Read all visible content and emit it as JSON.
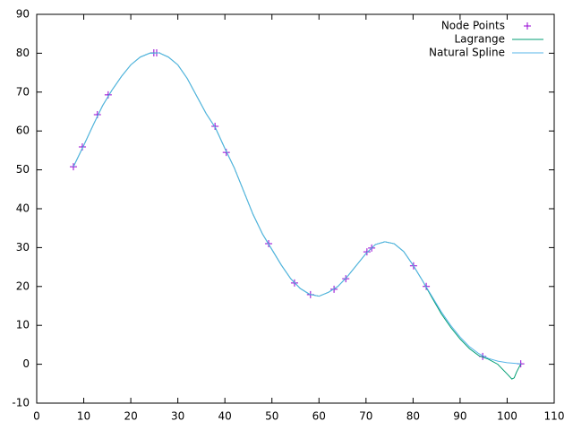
{
  "chart_data": {
    "type": "line",
    "xlim": [
      0,
      110
    ],
    "xticks": [
      0,
      10,
      20,
      30,
      40,
      50,
      60,
      70,
      80,
      90,
      100,
      110
    ],
    "ylim": [
      -10,
      90
    ],
    "yticks": [
      -10,
      0,
      10,
      20,
      30,
      40,
      50,
      60,
      70,
      80,
      90
    ],
    "grid": false,
    "legend": "top-right",
    "series": [
      {
        "name": "Node Points",
        "color": "#9400d3",
        "style": "points",
        "x": [
          7.8,
          9.7,
          12.9,
          15.2,
          24.9,
          25.5,
          37.9,
          40.3,
          49.3,
          54.8,
          58.2,
          63.2,
          65.7,
          70.2,
          71.2,
          80.1,
          82.8,
          94.8,
          102.9
        ],
        "values": [
          50.8,
          55.9,
          64.2,
          69.3,
          80.1,
          80.1,
          61.2,
          54.5,
          31.0,
          20.9,
          17.9,
          19.3,
          22.0,
          28.9,
          29.9,
          25.3,
          20.0,
          2.0,
          0.1
        ]
      },
      {
        "name": "Lagrange",
        "color": "#009e73",
        "style": "line",
        "x": [
          7.8,
          10,
          12,
          14,
          16,
          18,
          20,
          22,
          24,
          26,
          28,
          30,
          32,
          34,
          36,
          38,
          40,
          42,
          44,
          46,
          48,
          50,
          52,
          54,
          56,
          58,
          60,
          62,
          64,
          66,
          68,
          70,
          72,
          74,
          76,
          78,
          80,
          82,
          84,
          86,
          88,
          90,
          92,
          94,
          96,
          98,
          100,
          101,
          101.5,
          102,
          102.9
        ],
        "values": [
          50.8,
          56.3,
          61.5,
          66.5,
          70.5,
          74,
          77,
          79,
          80,
          80.1,
          79,
          77,
          73.5,
          69,
          64.5,
          60.8,
          55.5,
          50.5,
          44.5,
          38.5,
          33.5,
          29.5,
          25.5,
          22,
          19.5,
          18,
          17.5,
          18.5,
          20,
          22.5,
          25.5,
          28.5,
          30.8,
          31.5,
          31,
          29,
          25.5,
          21.5,
          17.2,
          13,
          9.5,
          6.5,
          4,
          2.2,
          1.3,
          0,
          -2.5,
          -3.8,
          -3.5,
          -2,
          0.1
        ]
      },
      {
        "name": "Natural Spline",
        "color": "#56b4e9",
        "style": "line",
        "x": [
          7.8,
          10,
          12,
          14,
          16,
          18,
          20,
          22,
          24,
          26,
          28,
          30,
          32,
          34,
          36,
          38,
          40,
          42,
          44,
          46,
          48,
          50,
          52,
          54,
          56,
          58,
          60,
          62,
          64,
          66,
          68,
          70,
          72,
          74,
          76,
          78,
          80,
          82,
          84,
          86,
          88,
          90,
          92,
          94,
          96,
          98,
          100,
          102,
          102.9
        ],
        "values": [
          50.8,
          56.3,
          61.5,
          66.5,
          70.5,
          74,
          77,
          79,
          80,
          80.1,
          79,
          77,
          73.5,
          69,
          64.5,
          60.8,
          55.5,
          50.5,
          44.5,
          38.5,
          33.5,
          29.5,
          25.5,
          22,
          19.5,
          18,
          17.5,
          18.5,
          20,
          22.5,
          25.5,
          28.5,
          30.8,
          31.5,
          31,
          29,
          25.5,
          21.5,
          17.5,
          13.5,
          10,
          7,
          4.5,
          2.7,
          1.5,
          0.8,
          0.4,
          0.2,
          0.1
        ]
      }
    ]
  }
}
